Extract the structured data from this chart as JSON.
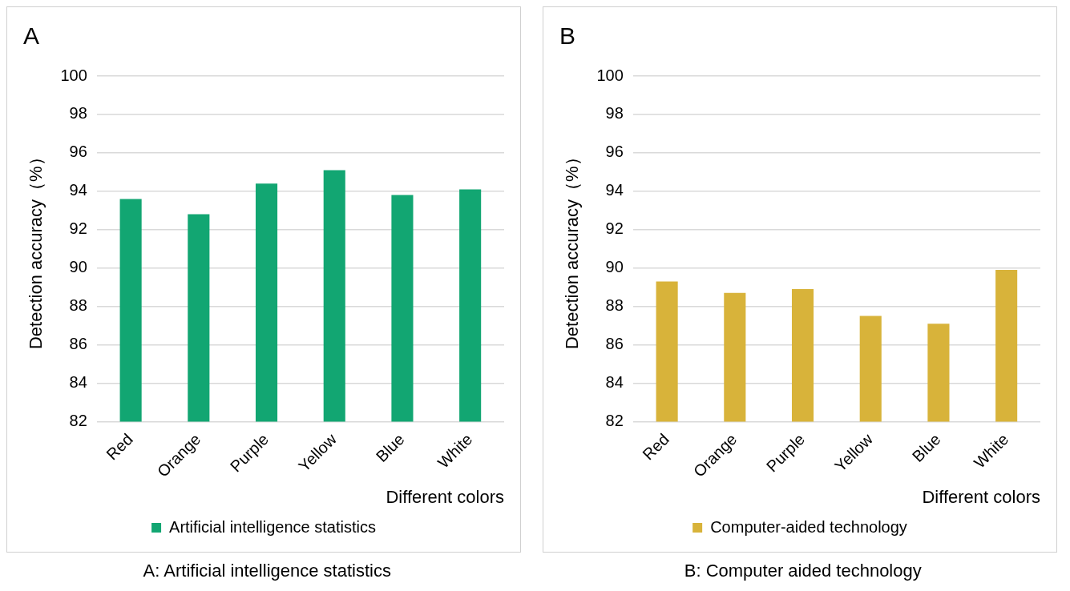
{
  "chart_data": [
    {
      "type": "bar",
      "title": "A",
      "categories": [
        "Red",
        "Orange",
        "Purple",
        "Yellow",
        "Blue",
        "White"
      ],
      "series": [
        {
          "name": "Artificial intelligence statistics",
          "color": "#12a672",
          "values": [
            93.6,
            92.8,
            94.4,
            95.1,
            93.8,
            94.1
          ]
        }
      ],
      "xlabel": "Different colors",
      "ylabel": "Detection accuracy（%）",
      "ylim": [
        82,
        100
      ],
      "yticks": [
        82,
        84,
        86,
        88,
        90,
        92,
        94,
        96,
        98,
        100
      ],
      "grid": "y",
      "legend": "bottom",
      "annotations": [
        "A: Artificial intelligence statistics"
      ]
    },
    {
      "type": "bar",
      "title": "B",
      "categories": [
        "Red",
        "Orange",
        "Purple",
        "Yellow",
        "Blue",
        "White"
      ],
      "series": [
        {
          "name": "Computer-aided technology",
          "color": "#d8b33a",
          "values": [
            89.3,
            88.7,
            88.9,
            87.5,
            87.1,
            89.9
          ]
        }
      ],
      "xlabel": "Different colors",
      "ylabel": "Detection accuracy（%）",
      "ylim": [
        82,
        100
      ],
      "yticks": [
        82,
        84,
        86,
        88,
        90,
        92,
        94,
        96,
        98,
        100
      ],
      "grid": "y",
      "legend": "bottom",
      "annotations": [
        "B: Computer aided technology"
      ]
    }
  ]
}
